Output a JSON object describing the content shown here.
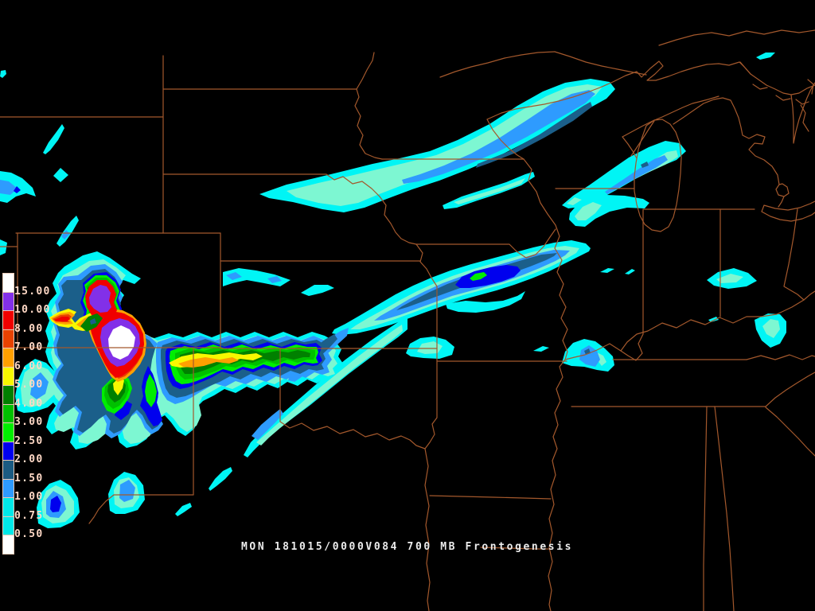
{
  "caption": {
    "text": "MON 181015/0000V084 700 MB Frontogenesis"
  },
  "legend": {
    "labels": [
      "15.00",
      "10.00",
      "8.00",
      "7.00",
      "6.00",
      "5.00",
      "4.00",
      "3.00",
      "2.50",
      "2.00",
      "1.50",
      "1.00",
      "0.75",
      "0.50"
    ],
    "segment_colors_top_to_bottom": [
      "#FFFFFF",
      "#8230E8",
      "#F00000",
      "#E84200",
      "#FFA000",
      "#F8F800",
      "#008000",
      "#00C000",
      "#00EE00",
      "#0000EE",
      "#1B5B82",
      "#2E9BFE",
      "#00E8E8",
      "#00E8E8",
      "#FFFFFF"
    ]
  },
  "map": {
    "background_color": "#000000",
    "state_border_color": "#A3582C",
    "variable": "700 MB Frontogenesis",
    "valid_time": "MON 181015/0000V084",
    "contour_levels": [
      {
        "value": "0.50",
        "color": "#00F5F5"
      },
      {
        "value": "0.75",
        "color": "#7DF7D2"
      },
      {
        "value": "1.00",
        "color": "#2E9BFE"
      },
      {
        "value": "1.50",
        "color": "#1B5F8A"
      },
      {
        "value": "2.00",
        "color": "#0000EE"
      },
      {
        "value": "2.50",
        "color": "#00EE00"
      },
      {
        "value": "3.00",
        "color": "#00C000"
      },
      {
        "value": "4.00",
        "color": "#008000"
      },
      {
        "value": "5.00",
        "color": "#F8F800"
      },
      {
        "value": "6.00",
        "color": "#FFA000"
      },
      {
        "value": "7.00",
        "color": "#E84200"
      },
      {
        "value": "8.00",
        "color": "#F00000"
      },
      {
        "value": "10.00",
        "color": "#8230E8"
      },
      {
        "value": "15.00",
        "color": "#FFFFFF"
      }
    ]
  }
}
